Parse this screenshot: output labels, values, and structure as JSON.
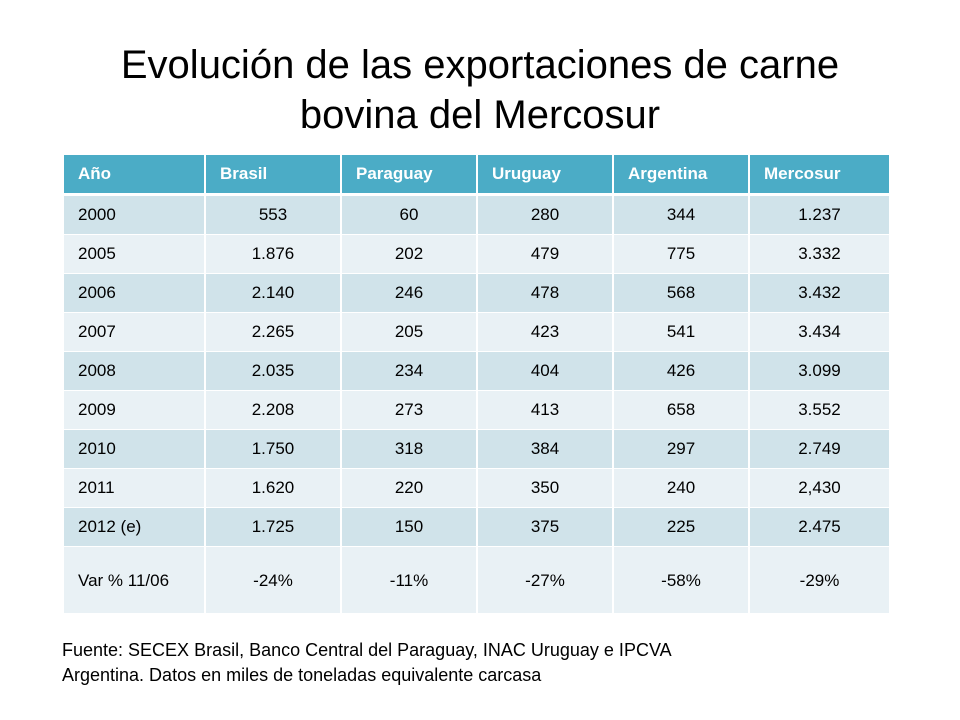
{
  "title": {
    "line1": "Evolución de las exportaciones de carne",
    "line2": "bovina del Mercosur"
  },
  "table": {
    "headers": [
      "Año",
      "Brasil",
      "Paraguay",
      "Uruguay",
      "Argentina",
      "Mercosur"
    ],
    "rows": [
      [
        "2000",
        "553",
        "60",
        "280",
        "344",
        "1.237"
      ],
      [
        "2005",
        "1.876",
        "202",
        "479",
        "775",
        "3.332"
      ],
      [
        "2006",
        "2.140",
        "246",
        "478",
        "568",
        "3.432"
      ],
      [
        "2007",
        "2.265",
        "205",
        "423",
        "541",
        "3.434"
      ],
      [
        "2008",
        "2.035",
        "234",
        "404",
        "426",
        "3.099"
      ],
      [
        "2009",
        "2.208",
        "273",
        "413",
        "658",
        "3.552"
      ],
      [
        "2010",
        "1.750",
        "318",
        "384",
        "297",
        "2.749"
      ],
      [
        "2011",
        "1.620",
        "220",
        "350",
        "240",
        "2,430"
      ],
      [
        "2012 (e)",
        "1.725",
        "150",
        "375",
        "225",
        "2.475"
      ],
      [
        "Var % 11/06",
        "-24%",
        "-11%",
        "-27%",
        "-58%",
        "-29%"
      ]
    ]
  },
  "source": {
    "line1": "Fuente: SECEX Brasil, Banco Central del Paraguay, INAC Uruguay e IPCVA",
    "line2": "Argentina. Datos en miles de toneladas equivalente carcasa"
  },
  "colors": {
    "header_bg": "#4bacc6",
    "row_band_dark": "#d0e3ea",
    "row_band_light": "#e9f1f5"
  }
}
